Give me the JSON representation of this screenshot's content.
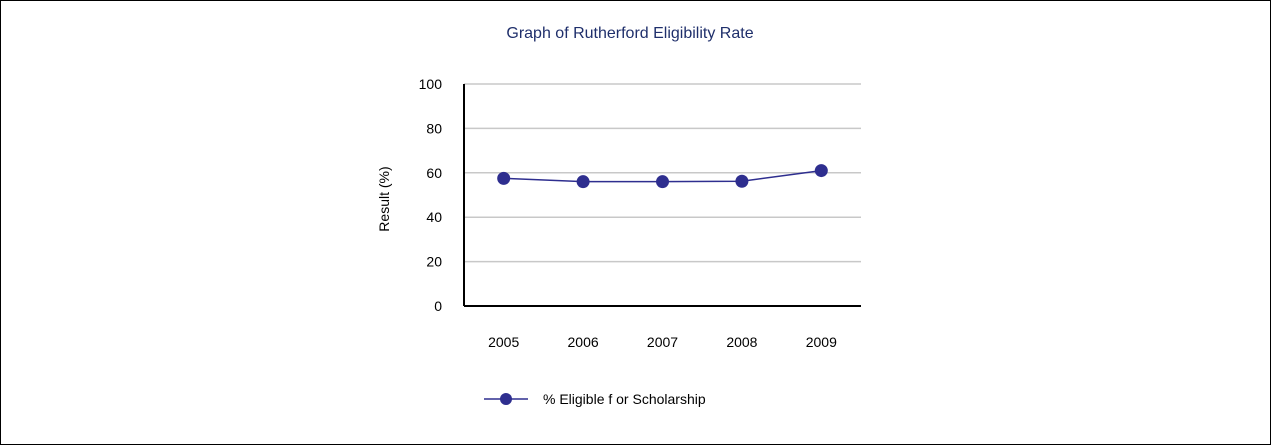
{
  "chart_data": {
    "type": "line",
    "title": "Graph of Rutherford Eligibility Rate",
    "xlabel": "",
    "ylabel": "Result (%)",
    "categories": [
      "2005",
      "2006",
      "2007",
      "2008",
      "2009"
    ],
    "series": [
      {
        "name": "% Eligible f or Scholarship",
        "values": [
          57.5,
          56,
          56,
          56.2,
          61
        ]
      }
    ],
    "ylim": [
      0,
      100
    ],
    "yticks": [
      "0",
      "20",
      "40",
      "60",
      "80",
      "100"
    ],
    "grid": true,
    "legend_position": "bottom-center"
  },
  "colors": {
    "series": "#2e2e8f",
    "title": "#1f2f6b",
    "grid": "#c8c8c8",
    "axis": "#000000"
  }
}
